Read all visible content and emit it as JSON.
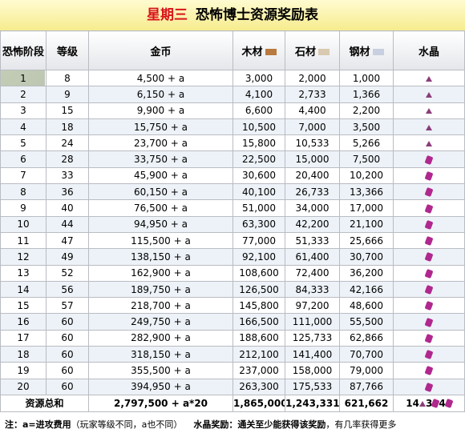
{
  "header": {
    "day": "星期三",
    "title": "恐怖博士资源奖励表"
  },
  "table": {
    "columns": [
      "恐怖阶段",
      "等级",
      "金币",
      "木材",
      "石材",
      "钢材",
      "水晶"
    ],
    "rows": [
      [
        "1",
        "8",
        "4,500 + a",
        "3,000",
        "2,000",
        "1,000"
      ],
      [
        "2",
        "9",
        "6,150 + a",
        "4,100",
        "2,733",
        "1,366"
      ],
      [
        "3",
        "15",
        "9,900 + a",
        "6,600",
        "4,400",
        "2,200"
      ],
      [
        "4",
        "18",
        "15,750 + a",
        "10,500",
        "7,000",
        "3,500"
      ],
      [
        "5",
        "24",
        "23,700 + a",
        "15,800",
        "10,533",
        "5,266"
      ],
      [
        "6",
        "28",
        "33,750 + a",
        "22,500",
        "15,000",
        "7,500"
      ],
      [
        "7",
        "33",
        "45,900 + a",
        "30,600",
        "20,400",
        "10,200"
      ],
      [
        "8",
        "36",
        "60,150 + a",
        "40,100",
        "26,733",
        "13,366"
      ],
      [
        "9",
        "40",
        "76,500 + a",
        "51,000",
        "34,000",
        "17,000"
      ],
      [
        "10",
        "44",
        "94,950 + a",
        "63,300",
        "42,200",
        "21,100"
      ],
      [
        "11",
        "47",
        "115,500 + a",
        "77,000",
        "51,333",
        "25,666"
      ],
      [
        "12",
        "49",
        "138,150 + a",
        "92,100",
        "61,400",
        "30,700"
      ],
      [
        "13",
        "52",
        "162,900 + a",
        "108,600",
        "72,400",
        "36,200"
      ],
      [
        "14",
        "56",
        "189,750 + a",
        "126,500",
        "84,333",
        "42,166"
      ],
      [
        "15",
        "57",
        "218,700 + a",
        "145,800",
        "97,200",
        "48,600"
      ],
      [
        "16",
        "60",
        "249,750 + a",
        "166,500",
        "111,000",
        "55,500"
      ],
      [
        "17",
        "60",
        "282,900 + a",
        "188,600",
        "125,733",
        "62,866"
      ],
      [
        "18",
        "60",
        "318,150 + a",
        "212,100",
        "141,400",
        "70,700"
      ],
      [
        "19",
        "60",
        "355,500 + a",
        "237,000",
        "158,000",
        "79,000"
      ],
      [
        "20",
        "60",
        "394,950 + a",
        "263,300",
        "175,533",
        "87,766"
      ]
    ],
    "total": {
      "label": "资源总和",
      "gold": "2,797,500 + a*20",
      "wood": "1,865,000",
      "stone": "1,243,331",
      "steel": "621,662",
      "crystal": [
        "14",
        "3",
        "4"
      ]
    }
  },
  "footer": {
    "note_label": "注：a=进攻费用",
    "note_text": "（玩家等级不同，a也不同）",
    "crystal_label": "水晶奖励：",
    "crystal_bold": "通关至少能获得该奖励",
    "crystal_text": "，有几率获得更多"
  }
}
